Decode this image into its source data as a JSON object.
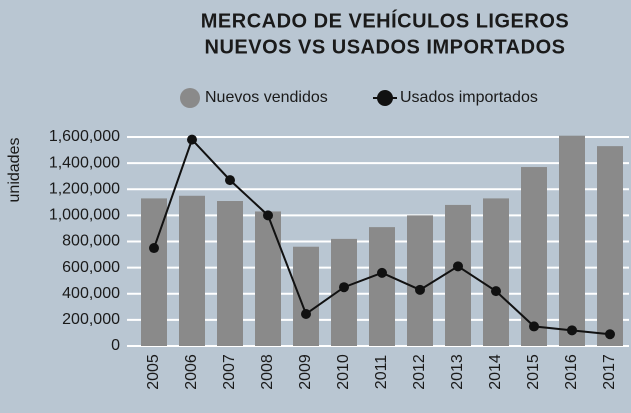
{
  "chart_data": {
    "type": "bar",
    "title": [
      "MERCADO DE VEHÍCULOS LIGEROS",
      "NUEVOS VS USADOS IMPORTADOS"
    ],
    "y_label": "unidades",
    "categories": [
      "2005",
      "2006",
      "2007",
      "2008",
      "2009",
      "2010",
      "2011",
      "2012",
      "2013",
      "2014",
      "2015",
      "2016",
      "2017"
    ],
    "series": [
      {
        "name": "Nuevos vendidos",
        "type": "bar",
        "color": "#8a8a8a",
        "values": [
          1130000,
          1150000,
          1110000,
          1030000,
          760000,
          820000,
          910000,
          1000000,
          1080000,
          1130000,
          1370000,
          1610000,
          1530000
        ]
      },
      {
        "name": "Usados importados",
        "type": "line",
        "color": "#111111",
        "values": [
          750000,
          1580000,
          1270000,
          1000000,
          245000,
          450000,
          560000,
          430000,
          610000,
          420000,
          150000,
          120000,
          90000
        ]
      }
    ],
    "ylim": [
      0,
      1600000
    ],
    "yticks": [
      0,
      {
        "value": 200000,
        "label": "200,000"
      },
      {
        "value": 400000,
        "label": "400,000"
      },
      {
        "value": 600000,
        "label": "600,000"
      },
      {
        "value": 800000,
        "label": "800,000"
      },
      {
        "value": 1000000,
        "label": "1,000,000"
      },
      {
        "value": 1200000,
        "label": "1,200,000"
      },
      {
        "value": 1400000,
        "label": "1,400,000"
      },
      {
        "value": 1600000,
        "label": "1,600,000"
      }
    ],
    "grid": true,
    "legend": "top"
  }
}
